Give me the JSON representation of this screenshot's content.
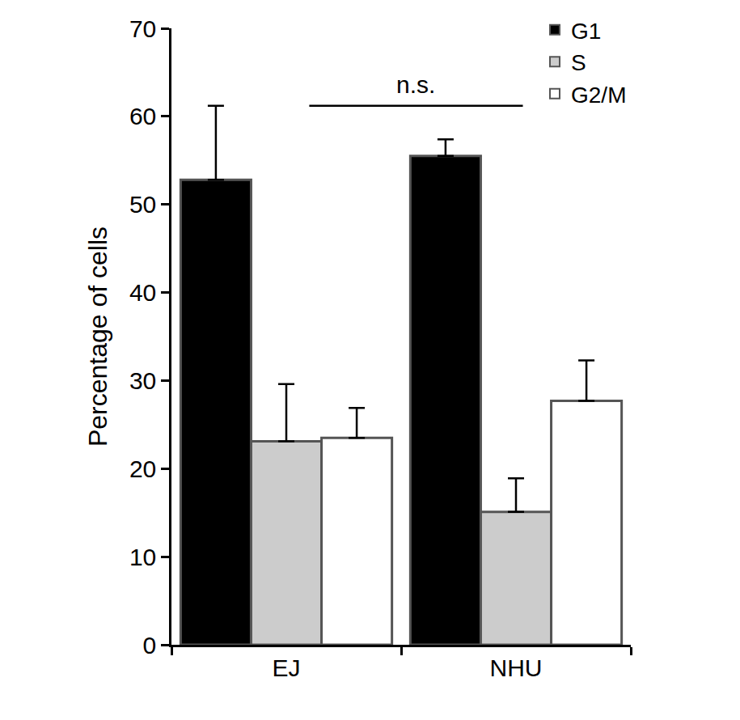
{
  "chart_data": {
    "type": "bar",
    "categories": [
      "EJ",
      "NHU"
    ],
    "ylabel": "Percentage of cells",
    "series": [
      {
        "name": "G1",
        "color": "#000000",
        "values": [
          52.8,
          55.5
        ],
        "errors": [
          8.4,
          1.9
        ]
      },
      {
        "name": "S",
        "color": "#cccccc",
        "values": [
          23.1,
          15.1
        ],
        "errors": [
          6.5,
          3.8
        ]
      },
      {
        "name": "G2/M",
        "color": "#ffffff",
        "values": [
          23.5,
          27.7
        ],
        "errors": [
          3.4,
          4.6
        ]
      }
    ],
    "ylim": [
      0,
      70
    ],
    "yticks": [
      0,
      10,
      20,
      30,
      40,
      50,
      60,
      70
    ],
    "grid": false,
    "legend": "top right",
    "annotations": [
      {
        "text": "n.s.",
        "from": "EJ",
        "to": "NHU",
        "y": 61.2
      }
    ]
  }
}
